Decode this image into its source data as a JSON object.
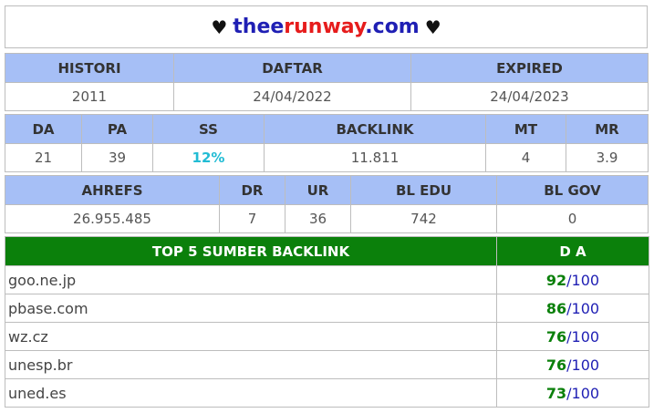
{
  "title": {
    "heart_left": "♥",
    "domain_part1": "thee",
    "domain_part2": "runway",
    "domain_part3": ".com",
    "heart_right": "♥"
  },
  "table1": {
    "headers": [
      "HISTORI",
      "DAFTAR",
      "EXPIRED"
    ],
    "values": [
      "2011",
      "24/04/2022",
      "24/04/2023"
    ]
  },
  "table2": {
    "headers": [
      "DA",
      "PA",
      "SS",
      "BACKLINK",
      "MT",
      "MR"
    ],
    "values": [
      "21",
      "39",
      "12%",
      "11.811",
      "4",
      "3.9"
    ]
  },
  "table3": {
    "headers": [
      "AHREFS",
      "DR",
      "UR",
      "BL EDU",
      "BL GOV"
    ],
    "values": [
      "26.955.485",
      "7",
      "36",
      "742",
      "0"
    ]
  },
  "backlinks": {
    "header_source": "TOP 5 SUMBER BACKLINK",
    "header_da": "D A",
    "max_label": "100",
    "separator": "/",
    "rows": [
      {
        "site": "goo.ne.jp",
        "score": "92"
      },
      {
        "site": "pbase.com",
        "score": "86"
      },
      {
        "site": "wz.cz",
        "score": "76"
      },
      {
        "site": "unesp.br",
        "score": "76"
      },
      {
        "site": "uned.es",
        "score": "73"
      }
    ]
  },
  "colors": {
    "header_bg": "#a6bff6",
    "backlink_header_bg": "#0b800b",
    "domain_blue": "#1f1fb4",
    "domain_red": "#e61c1c",
    "ss_cyan": "#22bcd4"
  }
}
